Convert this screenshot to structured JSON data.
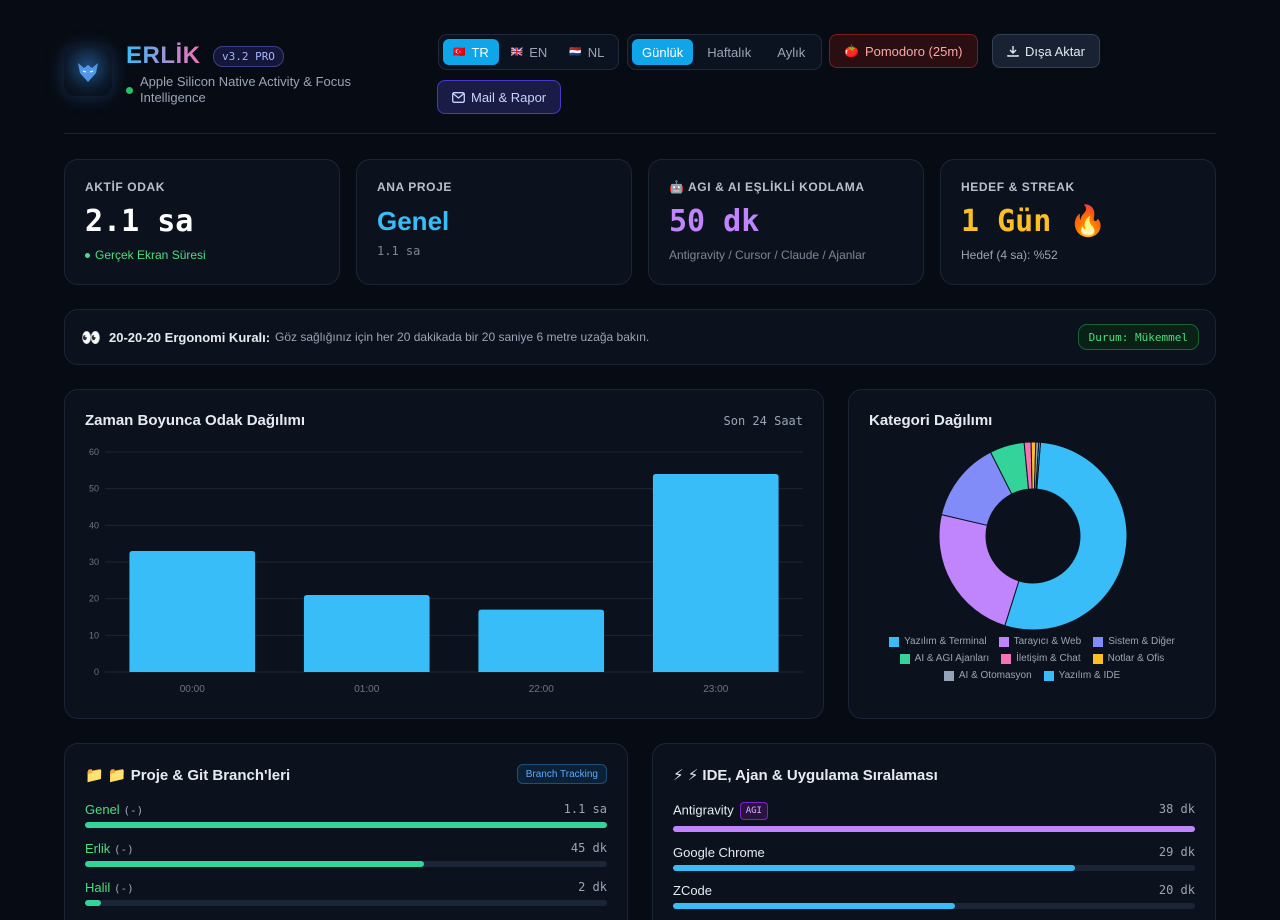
{
  "header": {
    "brand": "ERLİK",
    "version": "v3.2 PRO",
    "tagline": "Apple Silicon Native Activity & Focus Intelligence",
    "languages": [
      {
        "flag": "🇹🇷",
        "code": "TR"
      },
      {
        "flag": "🇬🇧",
        "code": "EN"
      },
      {
        "flag": "🇳🇱",
        "code": "NL"
      }
    ],
    "periods": [
      "Günlük",
      "Haftalık",
      "Aylık"
    ],
    "pomodoro": "Pomodoro (25m)",
    "export": "Dışa Aktar",
    "mail": "Mail & Rapor"
  },
  "stats": [
    {
      "label": "AKTİF ODAK",
      "value": "2.1 sa",
      "sub": "Gerçek Ekran Süresi"
    },
    {
      "label": "ANA PROJE",
      "value": "Genel",
      "sub": "1.1 sa"
    },
    {
      "label": "🤖 AGI & AI EŞLİKLİ KODLAMA",
      "value": "50 dk",
      "sub": "Antigravity / Cursor / Claude / Ajanlar"
    },
    {
      "label": "HEDEF & STREAK",
      "value": "1 Gün 🔥",
      "sub": "Hedef (4 sa): %52"
    }
  ],
  "ergo": {
    "eyes": "👀",
    "title": "20-20-20 Ergonomi Kuralı:",
    "text": "Göz sağlığınız için her 20 dakikada bir 20 saniye 6 metre uzağa bakın.",
    "badge": "Durum: Mükemmel"
  },
  "timeline": {
    "title": "Zaman Boyunca Odak Dağılımı",
    "range": "Son 24 Saat"
  },
  "chart_data": [
    {
      "type": "bar",
      "categories": [
        "00:00",
        "01:00",
        "22:00",
        "23:00"
      ],
      "values": [
        33,
        21,
        17,
        54
      ],
      "ylim": [
        0,
        60
      ],
      "yticks": [
        0,
        10,
        20,
        30,
        40,
        50,
        60
      ],
      "color": "#38bdf8"
    },
    {
      "type": "pie",
      "title": "Kategori Dağılımı",
      "labels": [
        "Yazılım & Terminal",
        "Tarayıcı & Web",
        "Sistem & Diğer",
        "AI & AGI Ajanları",
        "İletişim & Chat",
        "Notlar & Ofis",
        "AI & Otomasyon",
        "Yazılım & IDE"
      ],
      "values": [
        54,
        24,
        14,
        6,
        1.2,
        0.8,
        0.5,
        0.3
      ],
      "colors": [
        "#38bdf8",
        "#c084fc",
        "#818cf8",
        "#34d399",
        "#f472b6",
        "#fbbf24",
        "#94a3b8",
        "#38bdf8"
      ],
      "legend": "bottom"
    }
  ],
  "projects": {
    "title": "📁 📁 Proje & Git Branch'leri",
    "badge": "Branch Tracking",
    "items": [
      {
        "name": "Genel",
        "branch": "(-)",
        "value": "1.1 sa",
        "pct": 100
      },
      {
        "name": "Erlik",
        "branch": "(-)",
        "value": "45 dk",
        "pct": 65
      },
      {
        "name": "Halil",
        "branch": "(-)",
        "value": "2 dk",
        "pct": 3
      }
    ]
  },
  "apps": {
    "title": "⚡ ⚡ IDE, Ajan & Uygulama Sıralaması",
    "items": [
      {
        "name": "Antigravity",
        "tag": "AGI",
        "value": "38 dk",
        "pct": 100,
        "color": "#c084fc"
      },
      {
        "name": "Google Chrome",
        "tag": "",
        "value": "29 dk",
        "pct": 77,
        "color": "#38bdf8"
      },
      {
        "name": "ZCode",
        "tag": "",
        "value": "20 dk",
        "pct": 54,
        "color": "#38bdf8"
      }
    ]
  }
}
